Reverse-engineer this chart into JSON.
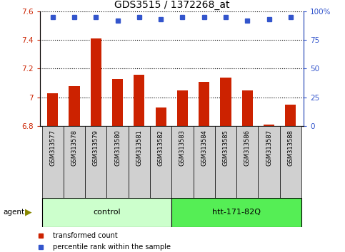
{
  "title": "GDS3515 / 1372268_at",
  "samples": [
    "GSM313577",
    "GSM313578",
    "GSM313579",
    "GSM313580",
    "GSM313581",
    "GSM313582",
    "GSM313583",
    "GSM313584",
    "GSM313585",
    "GSM313586",
    "GSM313587",
    "GSM313588"
  ],
  "bar_values": [
    7.03,
    7.08,
    7.41,
    7.13,
    7.16,
    6.93,
    7.05,
    7.11,
    7.14,
    7.05,
    6.81,
    6.95
  ],
  "percentile_values": [
    95,
    95,
    95,
    92,
    95,
    93,
    95,
    95,
    95,
    92,
    93,
    95
  ],
  "bar_color": "#cc2200",
  "percentile_color": "#3355cc",
  "ylim_left": [
    6.8,
    7.6
  ],
  "ylim_right": [
    0,
    100
  ],
  "yticks_left": [
    6.8,
    7.0,
    7.2,
    7.4,
    7.6
  ],
  "yticks_right": [
    0,
    25,
    50,
    75,
    100
  ],
  "ytick_labels_left": [
    "6.8",
    "7",
    "7.2",
    "7.4",
    "7.6"
  ],
  "ytick_labels_right": [
    "0",
    "25",
    "50",
    "75",
    "100%"
  ],
  "ctrl_n": 6,
  "treat_n": 6,
  "control_label": "control",
  "treatment_label": "htt-171-82Q",
  "agent_label": "agent",
  "legend_bar_label": "transformed count",
  "legend_dot_label": "percentile rank within the sample",
  "background_color": "#ffffff",
  "control_fill": "#ccffcc",
  "treatment_fill": "#55ee55",
  "bar_width": 0.5,
  "base_value": 6.8,
  "title_fontsize": 10,
  "tick_fontsize": 7.5,
  "sample_fontsize": 6,
  "group_fontsize": 8
}
